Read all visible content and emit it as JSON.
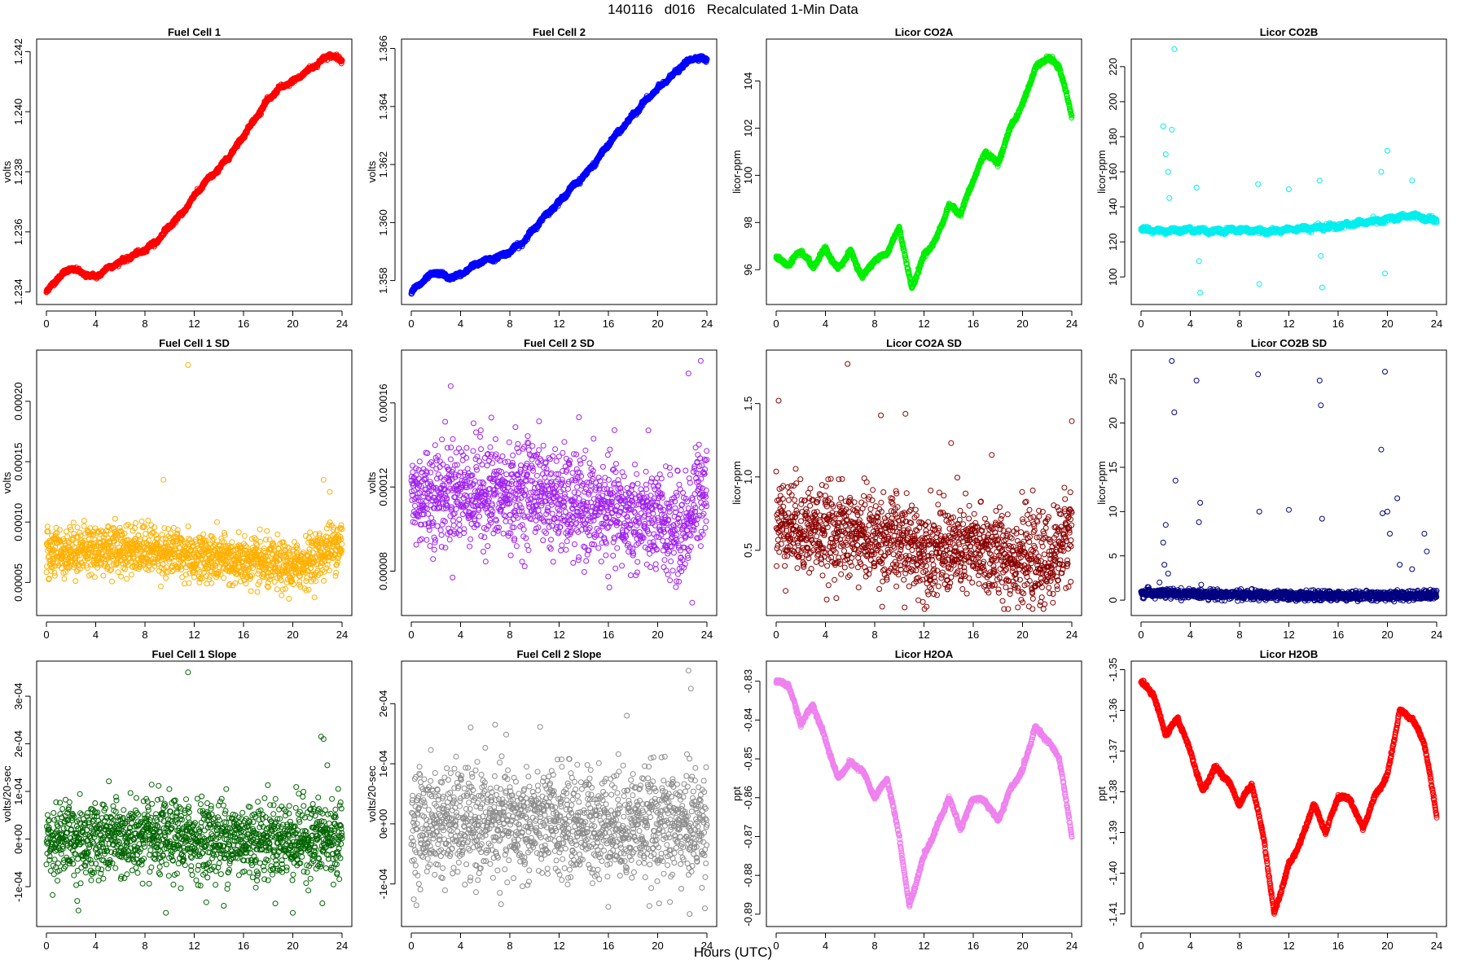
{
  "title": "140116   d016   Recalculated 1-Min Data",
  "common_xlabel": "Hours (UTC)",
  "chart_data": [
    {
      "type": "scatter",
      "title": "Fuel Cell 1",
      "ylabel": "volts",
      "color": "#ff0000",
      "xlim": [
        0,
        24
      ],
      "ylim": [
        1.2338,
        1.2422
      ],
      "xticks": [
        0,
        4,
        8,
        12,
        16,
        20,
        24
      ],
      "xtick_labels": [
        "0",
        "4",
        "8",
        "12",
        "16",
        "20",
        "24"
      ],
      "yticks": [
        1.234,
        1.236,
        1.238,
        1.24,
        1.242
      ],
      "ytick_labels": [
        "1.234",
        "1.236",
        "1.238",
        "1.240",
        "1.242"
      ],
      "style": "trend",
      "x": [
        0,
        1,
        2,
        3,
        4,
        5,
        6,
        7,
        8,
        9,
        10,
        11,
        12,
        13,
        14,
        15,
        16,
        17,
        18,
        19,
        20,
        21,
        22,
        23,
        24
      ],
      "y": [
        1.234,
        1.2345,
        1.2348,
        1.2346,
        1.2345,
        1.2348,
        1.235,
        1.2352,
        1.2354,
        1.2357,
        1.2362,
        1.2366,
        1.2372,
        1.2377,
        1.2381,
        1.2386,
        1.2392,
        1.2398,
        1.2404,
        1.2408,
        1.241,
        1.2413,
        1.2416,
        1.2419,
        1.2417
      ]
    },
    {
      "type": "scatter",
      "title": "Fuel Cell 2",
      "ylabel": "volts",
      "color": "#0000ff",
      "xlim": [
        0,
        24
      ],
      "ylim": [
        1.3574,
        1.3661
      ],
      "xticks": [
        0,
        4,
        8,
        12,
        16,
        20,
        24
      ],
      "xtick_labels": [
        "0",
        "4",
        "8",
        "12",
        "16",
        "20",
        "24"
      ],
      "yticks": [
        1.358,
        1.36,
        1.362,
        1.364,
        1.366
      ],
      "ytick_labels": [
        "1.358",
        "1.360",
        "1.362",
        "1.364",
        "1.366"
      ],
      "style": "trend",
      "x": [
        0,
        1,
        2,
        3,
        4,
        5,
        6,
        7,
        8,
        9,
        10,
        11,
        12,
        13,
        14,
        15,
        16,
        17,
        18,
        19,
        20,
        21,
        22,
        23,
        24
      ],
      "y": [
        1.3576,
        1.358,
        1.3583,
        1.3581,
        1.3582,
        1.3585,
        1.3587,
        1.3588,
        1.359,
        1.3593,
        1.3598,
        1.3603,
        1.3607,
        1.3612,
        1.3616,
        1.3621,
        1.3627,
        1.3632,
        1.3637,
        1.3642,
        1.3646,
        1.365,
        1.3654,
        1.3657,
        1.3656
      ]
    },
    {
      "type": "scatter",
      "title": "Licor CO2A",
      "ylabel": "licor-ppm",
      "color": "#00ee00",
      "xlim": [
        0,
        24
      ],
      "ylim": [
        94.8,
        105.5
      ],
      "xticks": [
        0,
        4,
        8,
        12,
        16,
        20,
        24
      ],
      "xtick_labels": [
        "0",
        "4",
        "8",
        "12",
        "16",
        "20",
        "24"
      ],
      "yticks": [
        96,
        98,
        100,
        102,
        104
      ],
      "ytick_labels": [
        "96",
        "98",
        "100",
        "102",
        "104"
      ],
      "style": "trend",
      "x": [
        0,
        1,
        2,
        3,
        4,
        5,
        6,
        7,
        8,
        9,
        10,
        11,
        12,
        13,
        14,
        15,
        16,
        17,
        18,
        19,
        20,
        21,
        22,
        23,
        24
      ],
      "y": [
        96.5,
        96.2,
        96.8,
        96.1,
        96.9,
        96.0,
        96.8,
        95.7,
        96.4,
        96.7,
        97.8,
        95.2,
        96.6,
        97.3,
        98.7,
        98.4,
        99.8,
        101.0,
        100.5,
        102.0,
        103.0,
        104.5,
        105.0,
        104.6,
        102.5
      ]
    },
    {
      "type": "scatter",
      "title": "Licor CO2B",
      "ylabel": "licor-ppm",
      "color": "#00eeee",
      "xlim": [
        0,
        24
      ],
      "ylim": [
        88,
        232
      ],
      "xticks": [
        0,
        4,
        8,
        12,
        16,
        20,
        24
      ],
      "xtick_labels": [
        "0",
        "4",
        "8",
        "12",
        "16",
        "20",
        "24"
      ],
      "yticks": [
        100,
        120,
        140,
        160,
        180,
        200,
        220
      ],
      "ytick_labels": [
        "100",
        "120",
        "140",
        "160",
        "180",
        "200",
        "220"
      ],
      "style": "trend-outliers",
      "x": [
        0,
        2,
        4,
        6,
        8,
        10,
        12,
        14,
        16,
        18,
        20,
        22,
        24
      ],
      "y": [
        127,
        126,
        127,
        126,
        127,
        126,
        127,
        128,
        129,
        131,
        133,
        135,
        132
      ],
      "outliers_x": [
        1.8,
        2.0,
        2.2,
        2.5,
        2.7,
        4.5,
        4.8,
        9.5,
        9.6,
        12.0,
        14.5,
        14.6,
        14.7,
        19.5,
        19.8,
        20.0,
        22.0,
        2.3,
        4.7
      ],
      "outliers_y": [
        186,
        170,
        160,
        184,
        230,
        151,
        91,
        153,
        96,
        150,
        155,
        112,
        94,
        160,
        102,
        172,
        155,
        145,
        109
      ]
    },
    {
      "type": "scatter",
      "title": "Fuel Cell 1 SD",
      "ylabel": "volts",
      "color": "#ffb000",
      "xlim": [
        0,
        24
      ],
      "ylim": [
        2.8e-05,
        0.000237
      ],
      "xticks": [
        0,
        4,
        8,
        12,
        16,
        20,
        24
      ],
      "xtick_labels": [
        "0",
        "4",
        "8",
        "12",
        "16",
        "20",
        "24"
      ],
      "yticks": [
        5e-05,
        0.0001,
        0.00015,
        0.0002
      ],
      "ytick_labels": [
        "0.00005",
        "0.00010",
        "0.00015",
        "0.00020"
      ],
      "style": "noise",
      "x": [
        0,
        4,
        8,
        12,
        16,
        20,
        22,
        24
      ],
      "y": [
        7.5e-05,
        7.8e-05,
        7.8e-05,
        7.2e-05,
        6.7e-05,
        6.2e-05,
        7.2e-05,
        8.5e-05
      ],
      "noise": 1e-05,
      "outliers_x": [
        9.5,
        11.5,
        22.5,
        23.0
      ],
      "outliers_y": [
        0.000135,
        0.00023,
        0.000135,
        0.000125
      ]
    },
    {
      "type": "scatter",
      "title": "Fuel Cell 2 SD",
      "ylabel": "volts",
      "color": "#a020f0",
      "xlim": [
        0,
        24
      ],
      "ylim": [
        6.2e-05,
        0.000182
      ],
      "xticks": [
        0,
        4,
        8,
        12,
        16,
        20,
        24
      ],
      "xtick_labels": [
        "0",
        "4",
        "8",
        "12",
        "16",
        "20",
        "24"
      ],
      "yticks": [
        8e-05,
        0.00012,
        0.00016
      ],
      "ytick_labels": [
        "0.00008",
        "0.00012",
        "0.00016"
      ],
      "style": "noise",
      "x": [
        0,
        4,
        8,
        10,
        12,
        16,
        20,
        22,
        24
      ],
      "y": [
        0.000115,
        0.000118,
        0.000116,
        0.00012,
        0.000112,
        0.000108,
        0.000103,
        9.8e-05,
        0.000125
      ],
      "noise": 1.2e-05,
      "outliers_x": [
        3.2,
        6.5,
        22.5,
        23.5,
        22.8
      ],
      "outliers_y": [
        0.000168,
        0.000153,
        0.000174,
        0.00018,
        6.5e-05
      ]
    },
    {
      "type": "scatter",
      "title": "Licor CO2A SD",
      "ylabel": "licor-ppm",
      "color": "#8b0000",
      "xlim": [
        0,
        24
      ],
      "ylim": [
        0.1,
        1.82
      ],
      "xticks": [
        0,
        4,
        8,
        12,
        16,
        20,
        24
      ],
      "xtick_labels": [
        "0",
        "4",
        "8",
        "12",
        "16",
        "20",
        "24"
      ],
      "yticks": [
        0.5,
        1.0,
        1.5
      ],
      "ytick_labels": [
        "0.5",
        "1.0",
        "1.5"
      ],
      "style": "noise",
      "x": [
        0,
        4,
        8,
        12,
        16,
        20,
        22,
        24
      ],
      "y": [
        0.7,
        0.62,
        0.6,
        0.5,
        0.5,
        0.45,
        0.4,
        0.65
      ],
      "noise": 0.15,
      "outliers_x": [
        0.2,
        5.8,
        8.5,
        10.5,
        14.2,
        17.5,
        24.0
      ],
      "outliers_y": [
        1.52,
        1.77,
        1.42,
        1.43,
        1.23,
        1.15,
        1.38
      ]
    },
    {
      "type": "scatter",
      "title": "Licor CO2B SD",
      "ylabel": "licor-ppm",
      "color": "#000080",
      "xlim": [
        0,
        24
      ],
      "ylim": [
        -1,
        27.5
      ],
      "xticks": [
        0,
        4,
        8,
        12,
        16,
        20,
        24
      ],
      "xtick_labels": [
        "0",
        "4",
        "8",
        "12",
        "16",
        "20",
        "24"
      ],
      "yticks": [
        0,
        5,
        10,
        15,
        20,
        25
      ],
      "ytick_labels": [
        "0",
        "5",
        "10",
        "15",
        "20",
        "25"
      ],
      "style": "noise",
      "x": [
        0,
        4,
        8,
        12,
        16,
        20,
        24
      ],
      "y": [
        0.8,
        0.7,
        0.6,
        0.5,
        0.5,
        0.5,
        0.6
      ],
      "noise": 0.25,
      "outliers_x": [
        1.5,
        1.8,
        2.0,
        2.5,
        2.7,
        2.8,
        4.5,
        4.8,
        9.5,
        9.6,
        12.0,
        14.5,
        14.6,
        14.7,
        19.5,
        19.6,
        19.8,
        20.0,
        20.2,
        20.8,
        21.0,
        22.0,
        23.0,
        23.2,
        1.9,
        2.2,
        4.7
      ],
      "outliers_y": [
        2.0,
        6.5,
        8.5,
        27.0,
        21.2,
        13.5,
        24.8,
        11.0,
        25.5,
        10.0,
        10.2,
        24.8,
        22.0,
        9.2,
        17.0,
        9.8,
        25.8,
        10.0,
        7.5,
        11.5,
        4.0,
        3.5,
        7.5,
        5.5,
        4.0,
        3.0,
        8.8
      ]
    },
    {
      "type": "scatter",
      "title": "Fuel Cell 1 Slope",
      "ylabel": "volts/20-sec",
      "color": "#006400",
      "xlim": [
        0,
        24
      ],
      "ylim": [
        -0.00017,
        0.00036
      ],
      "xticks": [
        0,
        4,
        8,
        12,
        16,
        20,
        24
      ],
      "xtick_labels": [
        "0",
        "4",
        "8",
        "12",
        "16",
        "20",
        "24"
      ],
      "yticks": [
        -0.0001,
        0,
        0.0001,
        0.0002,
        0.0003
      ],
      "ytick_labels": [
        "-1e-04",
        "0e+00",
        "1e-04",
        "2e-04",
        "3e-04"
      ],
      "style": "noise",
      "x": [
        0,
        24
      ],
      "y": [
        0.0,
        0.0
      ],
      "noise": 4e-05,
      "outliers_x": [
        2.5,
        2.6,
        9.7,
        11.5,
        14.4,
        14.6,
        20.0,
        22.3,
        22.5,
        22.8,
        22.4
      ],
      "outliers_y": [
        -0.00013,
        -0.00015,
        -0.000155,
        0.00035,
        -0.00014,
        0.000105,
        -0.000155,
        0.000215,
        0.00021,
        0.000155,
        -0.000135
      ]
    },
    {
      "type": "scatter",
      "title": "Fuel Cell 2 Slope",
      "ylabel": "volts/20-sec",
      "color": "#8c8c8c",
      "xlim": [
        0,
        24
      ],
      "ylim": [
        -0.00016,
        0.00026
      ],
      "xticks": [
        0,
        4,
        8,
        12,
        16,
        20,
        24
      ],
      "xtick_labels": [
        "0",
        "4",
        "8",
        "12",
        "16",
        "20",
        "24"
      ],
      "yticks": [
        -0.0001,
        0,
        0.0001,
        0.0002
      ],
      "ytick_labels": [
        "-1e-04",
        "0e+00",
        "1e-04",
        "2e-04"
      ],
      "style": "noise",
      "x": [
        0,
        24
      ],
      "y": [
        0.0,
        0.0
      ],
      "noise": 4.5e-05,
      "outliers_x": [
        6.8,
        17.5,
        22.5,
        22.7,
        22.6,
        21.0
      ],
      "outliers_y": [
        0.000165,
        0.00018,
        0.000255,
        0.000225,
        -0.00015,
        -0.00013
      ]
    },
    {
      "type": "scatter",
      "title": "Licor H2OA",
      "ylabel": "ppt",
      "color": "#ee82ee",
      "xlim": [
        0,
        24
      ],
      "ylim": [
        -0.8915,
        -0.8265
      ],
      "xticks": [
        0,
        4,
        8,
        12,
        16,
        20,
        24
      ],
      "xtick_labels": [
        "0",
        "4",
        "8",
        "12",
        "16",
        "20",
        "24"
      ],
      "yticks": [
        -0.89,
        -0.88,
        -0.87,
        -0.86,
        -0.85,
        -0.84,
        -0.83
      ],
      "ytick_labels": [
        "-0.89",
        "-0.88",
        "-0.87",
        "-0.86",
        "-0.85",
        "-0.84",
        "-0.83"
      ],
      "style": "trend",
      "x": [
        0,
        1,
        2,
        3,
        4,
        5,
        6,
        7,
        8,
        9,
        10,
        10.8,
        12,
        13,
        14,
        15,
        16,
        17,
        18,
        19,
        20,
        21,
        22,
        23,
        24
      ],
      "y": [
        -0.83,
        -0.831,
        -0.841,
        -0.836,
        -0.845,
        -0.855,
        -0.851,
        -0.853,
        -0.86,
        -0.855,
        -0.87,
        -0.888,
        -0.875,
        -0.868,
        -0.86,
        -0.868,
        -0.86,
        -0.861,
        -0.866,
        -0.858,
        -0.853,
        -0.842,
        -0.845,
        -0.85,
        -0.87
      ]
    },
    {
      "type": "scatter",
      "title": "Licor H2OB",
      "ylabel": "ppt",
      "color": "#ff0000",
      "xlim": [
        0,
        24
      ],
      "ylim": [
        -1.4115,
        -1.3495
      ],
      "xticks": [
        0,
        4,
        8,
        12,
        16,
        20,
        24
      ],
      "xtick_labels": [
        "0",
        "4",
        "8",
        "12",
        "16",
        "20",
        "24"
      ],
      "yticks": [
        -1.41,
        -1.4,
        -1.39,
        -1.38,
        -1.37,
        -1.36,
        -1.35
      ],
      "ytick_labels": [
        "-1.41",
        "-1.40",
        "-1.39",
        "-1.38",
        "-1.37",
        "-1.36",
        "-1.35"
      ],
      "style": "trend",
      "x": [
        0,
        1,
        2,
        3,
        4,
        5,
        6,
        7,
        8,
        9,
        10,
        10.8,
        12,
        13,
        14,
        15,
        16,
        17,
        18,
        19,
        20,
        21,
        22,
        23,
        24
      ],
      "y": [
        -1.353,
        -1.356,
        -1.366,
        -1.362,
        -1.37,
        -1.38,
        -1.374,
        -1.377,
        -1.383,
        -1.378,
        -1.392,
        -1.41,
        -1.398,
        -1.392,
        -1.383,
        -1.39,
        -1.381,
        -1.382,
        -1.389,
        -1.381,
        -1.376,
        -1.36,
        -1.362,
        -1.368,
        -1.386
      ]
    }
  ]
}
